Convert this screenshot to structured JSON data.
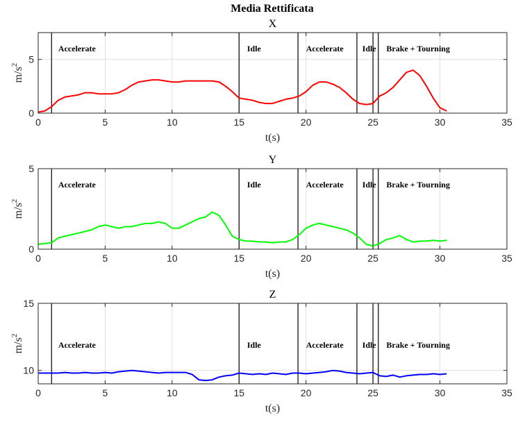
{
  "figure_title": "Media Rettificata",
  "chart_data": [
    {
      "type": "line",
      "title": "X",
      "xlabel": "t(s)",
      "ylabel": "m/s",
      "ylabel_sup": "2",
      "xlim": [
        0,
        35
      ],
      "ylim": [
        0,
        7.5
      ],
      "xticks": [
        0,
        5,
        10,
        15,
        20,
        25,
        30,
        35
      ],
      "yticks": [
        0,
        5
      ],
      "grid": true,
      "color": "#ff0000",
      "x": [
        0,
        0.5,
        1,
        1.5,
        2,
        2.5,
        3,
        3.5,
        4,
        4.5,
        5,
        5.5,
        6,
        6.5,
        7,
        7.5,
        8,
        8.5,
        9,
        9.5,
        10,
        10.5,
        11,
        11.5,
        12,
        12.5,
        13,
        13.5,
        14,
        14.5,
        15,
        15.5,
        16,
        16.5,
        17,
        17.5,
        18,
        18.5,
        19,
        19.5,
        20,
        20.5,
        21,
        21.5,
        22,
        22.5,
        23,
        23.5,
        24,
        24.5,
        25,
        25.5,
        26,
        26.5,
        27,
        27.5,
        28,
        28.5,
        29,
        29.5,
        30,
        30.5
      ],
      "y": [
        0.1,
        0.2,
        0.6,
        1.2,
        1.5,
        1.6,
        1.7,
        1.9,
        1.9,
        1.8,
        1.8,
        1.8,
        1.9,
        2.2,
        2.6,
        2.9,
        3.0,
        3.1,
        3.1,
        3.0,
        2.9,
        2.9,
        3.0,
        3.0,
        3.0,
        3.0,
        3.0,
        2.9,
        2.5,
        2.0,
        1.4,
        1.3,
        1.2,
        1.0,
        0.9,
        0.9,
        1.1,
        1.3,
        1.4,
        1.6,
        2.0,
        2.6,
        2.9,
        2.9,
        2.7,
        2.4,
        1.9,
        1.3,
        0.9,
        0.8,
        0.9,
        1.6,
        1.9,
        2.4,
        3.1,
        3.8,
        4.0,
        3.5,
        2.5,
        1.4,
        0.5,
        0.2
      ],
      "vlines": [
        1,
        15,
        19.4,
        23.8,
        25,
        25.4
      ],
      "annotations": [
        {
          "text": "Accelerate",
          "x": 1.5,
          "y": 6.0
        },
        {
          "text": "Idle",
          "x": 15.6,
          "y": 6.0
        },
        {
          "text": "Accelerate",
          "x": 20.0,
          "y": 6.0
        },
        {
          "text": "Idle",
          "x": 24.2,
          "y": 6.0
        },
        {
          "text": "Brake + Tourning",
          "x": 26.0,
          "y": 6.0
        }
      ]
    },
    {
      "type": "line",
      "title": "Y",
      "xlabel": "t(s)",
      "ylabel": "m/s",
      "ylabel_sup": "2",
      "xlim": [
        0,
        35
      ],
      "ylim": [
        0,
        5
      ],
      "xticks": [
        0,
        5,
        10,
        15,
        20,
        25,
        30,
        35
      ],
      "yticks": [
        0,
        5
      ],
      "grid": true,
      "color": "#00ff00",
      "x": [
        0,
        0.5,
        1,
        1.5,
        2,
        2.5,
        3,
        3.5,
        4,
        4.5,
        5,
        5.5,
        6,
        6.5,
        7,
        7.5,
        8,
        8.5,
        9,
        9.5,
        10,
        10.5,
        11,
        11.5,
        12,
        12.5,
        13,
        13.5,
        14,
        14.5,
        15,
        15.5,
        16,
        16.5,
        17,
        17.5,
        18,
        18.5,
        19,
        19.5,
        20,
        20.5,
        21,
        21.5,
        22,
        22.5,
        23,
        23.5,
        24,
        24.5,
        25,
        25.5,
        26,
        26.5,
        27,
        27.5,
        28,
        28.5,
        29,
        29.5,
        30,
        30.5
      ],
      "y": [
        0.3,
        0.35,
        0.4,
        0.7,
        0.8,
        0.9,
        1.0,
        1.1,
        1.2,
        1.4,
        1.5,
        1.4,
        1.3,
        1.4,
        1.4,
        1.5,
        1.6,
        1.6,
        1.7,
        1.6,
        1.3,
        1.3,
        1.5,
        1.7,
        1.9,
        2.0,
        2.3,
        2.1,
        1.5,
        0.8,
        0.6,
        0.5,
        0.5,
        0.45,
        0.45,
        0.4,
        0.45,
        0.45,
        0.6,
        0.9,
        1.3,
        1.5,
        1.6,
        1.5,
        1.4,
        1.3,
        1.2,
        1.0,
        0.7,
        0.3,
        0.2,
        0.35,
        0.6,
        0.7,
        0.85,
        0.6,
        0.45,
        0.5,
        0.5,
        0.55,
        0.5,
        0.55
      ],
      "vlines": [
        1,
        15,
        19.4,
        23.8,
        25,
        25.4
      ],
      "annotations": [
        {
          "text": "Accelerate",
          "x": 1.5,
          "y": 4.0
        },
        {
          "text": "Idle",
          "x": 15.6,
          "y": 4.0
        },
        {
          "text": "Accelerate",
          "x": 20.0,
          "y": 4.0
        },
        {
          "text": "Idle",
          "x": 24.2,
          "y": 4.0
        },
        {
          "text": "Brake + Tourning",
          "x": 26.0,
          "y": 4.0
        }
      ]
    },
    {
      "type": "line",
      "title": "Z",
      "xlabel": "t(s)",
      "ylabel": "m/s",
      "ylabel_sup": "2",
      "xlim": [
        0,
        35
      ],
      "ylim": [
        9,
        15
      ],
      "xticks": [
        0,
        5,
        10,
        15,
        20,
        25,
        30,
        35
      ],
      "yticks": [
        10,
        15
      ],
      "grid": true,
      "color": "#0000ff",
      "x": [
        0,
        0.5,
        1,
        1.5,
        2,
        2.5,
        3,
        3.5,
        4,
        4.5,
        5,
        5.5,
        6,
        6.5,
        7,
        7.5,
        8,
        8.5,
        9,
        9.5,
        10,
        10.5,
        11,
        11.5,
        12,
        12.5,
        13,
        13.5,
        14,
        14.5,
        15,
        15.5,
        16,
        16.5,
        17,
        17.5,
        18,
        18.5,
        19,
        19.5,
        20,
        20.5,
        21,
        21.5,
        22,
        22.5,
        23,
        23.5,
        24,
        24.5,
        25,
        25.5,
        26,
        26.5,
        27,
        27.5,
        28,
        28.5,
        29,
        29.5,
        30,
        30.5
      ],
      "y": [
        9.8,
        9.8,
        9.8,
        9.8,
        9.85,
        9.8,
        9.8,
        9.85,
        9.8,
        9.8,
        9.85,
        9.8,
        9.9,
        9.95,
        10.0,
        9.95,
        9.9,
        9.85,
        9.8,
        9.85,
        9.85,
        9.85,
        9.85,
        9.7,
        9.3,
        9.25,
        9.3,
        9.5,
        9.6,
        9.65,
        9.8,
        9.75,
        9.7,
        9.75,
        9.7,
        9.8,
        9.75,
        9.7,
        9.8,
        9.8,
        9.75,
        9.8,
        9.85,
        9.9,
        10.0,
        9.95,
        9.85,
        9.8,
        9.75,
        9.8,
        9.85,
        9.6,
        9.55,
        9.65,
        9.5,
        9.6,
        9.65,
        9.7,
        9.7,
        9.75,
        9.7,
        9.75
      ],
      "vlines": [
        1,
        15,
        19.4,
        23.8,
        25,
        25.4
      ],
      "annotations": [
        {
          "text": "Accelerate",
          "x": 1.5,
          "y": 11.9
        },
        {
          "text": "Idle",
          "x": 15.6,
          "y": 11.9
        },
        {
          "text": "Accelerate",
          "x": 20.0,
          "y": 11.9
        },
        {
          "text": "Idle",
          "x": 24.2,
          "y": 11.9
        },
        {
          "text": "Brake + Tourning",
          "x": 26.0,
          "y": 11.9
        }
      ]
    }
  ]
}
